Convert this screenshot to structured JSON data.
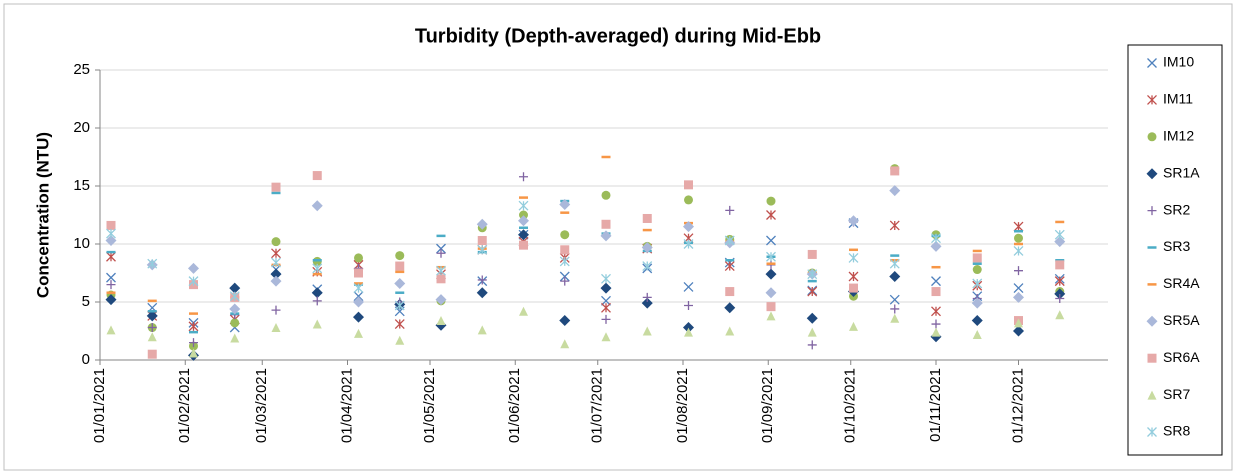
{
  "chart_data": {
    "type": "scatter",
    "title": "Turbidity (Depth-averaged) during Mid-Ebb",
    "y_label": "Concentration (NTU)",
    "x": [
      "2021-01-05",
      "2021-01-20",
      "2021-02-04",
      "2021-02-19",
      "2021-03-06",
      "2021-03-21",
      "2021-04-05",
      "2021-04-20",
      "2021-05-05",
      "2021-05-20",
      "2021-06-04",
      "2021-06-19",
      "2021-07-04",
      "2021-07-19",
      "2021-08-03",
      "2021-08-18",
      "2021-09-02",
      "2021-09-17",
      "2021-10-02",
      "2021-10-17",
      "2021-11-01",
      "2021-11-16",
      "2021-12-01",
      "2021-12-16"
    ],
    "xlim": [
      "2021-01-01",
      "2021-12-31"
    ],
    "xticks": [
      {
        "value": "2021-01-01",
        "label": "01/01/2021"
      },
      {
        "value": "2021-02-01",
        "label": "01/02/2021"
      },
      {
        "value": "2021-03-01",
        "label": "01/03/2021"
      },
      {
        "value": "2021-04-01",
        "label": "01/04/2021"
      },
      {
        "value": "2021-05-01",
        "label": "01/05/2021"
      },
      {
        "value": "2021-06-01",
        "label": "01/06/2021"
      },
      {
        "value": "2021-07-01",
        "label": "01/07/2021"
      },
      {
        "value": "2021-08-01",
        "label": "01/08/2021"
      },
      {
        "value": "2021-09-01",
        "label": "01/09/2021"
      },
      {
        "value": "2021-10-01",
        "label": "01/10/2021"
      },
      {
        "value": "2021-11-01",
        "label": "01/11/2021"
      },
      {
        "value": "2021-12-01",
        "label": "01/12/2021"
      }
    ],
    "ylim": [
      0,
      25
    ],
    "yticks": [
      0,
      5,
      10,
      15,
      20,
      25
    ],
    "grid": true,
    "legend": "right",
    "series": [
      {
        "name": "IM10",
        "color": "#4f81bd",
        "marker": "x",
        "values": [
          7.1,
          4.5,
          3.2,
          2.8,
          7.8,
          6.1,
          5.5,
          4.2,
          9.6,
          6.8,
          10.8,
          7.2,
          5.1,
          7.9,
          6.3,
          8.4,
          10.3,
          6.0,
          11.8,
          5.2,
          6.8,
          5.5,
          6.2,
          7.0
        ]
      },
      {
        "name": "IM11",
        "color": "#c0504d",
        "marker": "star",
        "values": [
          8.9,
          3.8,
          2.9,
          3.5,
          9.2,
          7.6,
          8.2,
          3.1,
          7.4,
          9.5,
          10.2,
          8.8,
          4.5,
          9.6,
          10.5,
          8.1,
          12.5,
          5.9,
          7.2,
          11.6,
          4.2,
          6.4,
          11.5,
          6.8
        ]
      },
      {
        "name": "IM12",
        "color": "#9bbb59",
        "marker": "circle",
        "values": [
          5.6,
          2.8,
          1.2,
          3.2,
          10.2,
          8.5,
          8.8,
          9.0,
          5.1,
          11.4,
          12.5,
          10.8,
          14.2,
          9.8,
          13.8,
          10.4,
          13.7,
          7.5,
          5.5,
          16.5,
          10.8,
          7.8,
          10.5,
          5.9
        ]
      },
      {
        "name": "SR1A",
        "color": "#1f497d",
        "marker": "diamond",
        "values": [
          5.2,
          3.8,
          0.4,
          6.2,
          7.4,
          5.8,
          3.7,
          4.8,
          3.0,
          5.8,
          10.8,
          3.4,
          6.2,
          4.9,
          2.8,
          4.5,
          7.4,
          3.6,
          5.9,
          7.2,
          2.0,
          3.4,
          2.5,
          5.7
        ]
      },
      {
        "name": "SR2",
        "color": "#8064a2",
        "marker": "plus",
        "values": [
          6.5,
          2.8,
          1.5,
          3.9,
          4.3,
          5.1,
          7.9,
          5.0,
          9.2,
          6.9,
          15.8,
          6.8,
          3.5,
          5.4,
          4.7,
          12.9,
          8.2,
          1.3,
          11.9,
          4.4,
          3.1,
          5.3,
          7.7,
          5.3
        ]
      },
      {
        "name": "SR3",
        "color": "#4bacc6",
        "marker": "dash",
        "values": [
          9.3,
          4.2,
          2.4,
          4.0,
          14.4,
          8.6,
          6.5,
          5.8,
          10.7,
          9.3,
          11.4,
          13.7,
          10.9,
          9.4,
          10.1,
          8.6,
          8.9,
          6.8,
          12.0,
          9.0,
          10.7,
          8.3,
          11.1,
          8.6
        ]
      },
      {
        "name": "SR4A",
        "color": "#f79646",
        "marker": "dash",
        "values": [
          5.8,
          5.1,
          4.0,
          5.4,
          8.2,
          7.4,
          6.6,
          7.6,
          8.0,
          9.6,
          14.0,
          12.7,
          17.5,
          11.2,
          11.8,
          10.2,
          8.3,
          7.5,
          9.5,
          8.6,
          8.0,
          9.4,
          10.0,
          11.9
        ]
      },
      {
        "name": "SR5A",
        "color": "#aab8da",
        "marker": "diamond",
        "values": [
          10.3,
          8.2,
          7.9,
          4.4,
          6.8,
          13.3,
          5.0,
          6.6,
          5.2,
          11.7,
          12.0,
          13.4,
          10.7,
          9.7,
          11.5,
          10.1,
          5.8,
          7.4,
          12.0,
          14.6,
          9.8,
          4.9,
          5.4,
          10.2
        ]
      },
      {
        "name": "SR6A",
        "color": "#e6a9a8",
        "marker": "square",
        "values": [
          11.6,
          0.5,
          6.5,
          5.4,
          14.9,
          15.9,
          7.5,
          8.1,
          7.0,
          10.3,
          9.9,
          9.5,
          11.7,
          12.2,
          15.1,
          5.9,
          4.6,
          9.1,
          6.2,
          16.3,
          5.9,
          8.8,
          3.4,
          8.2
        ]
      },
      {
        "name": "SR7",
        "color": "#c8dba0",
        "marker": "triangle",
        "values": [
          2.6,
          2.0,
          0.6,
          1.9,
          2.8,
          3.1,
          2.3,
          1.7,
          3.4,
          2.6,
          4.2,
          1.4,
          2.0,
          2.5,
          2.4,
          2.5,
          3.8,
          2.4,
          2.9,
          3.6,
          2.4,
          2.2,
          3.2,
          3.9
        ]
      },
      {
        "name": "SR8",
        "color": "#93cddd",
        "marker": "star",
        "values": [
          10.9,
          8.3,
          6.8,
          5.5,
          8.4,
          7.9,
          6.2,
          4.7,
          7.7,
          9.5,
          13.3,
          8.5,
          7.0,
          8.1,
          10.0,
          10.3,
          8.9,
          7.4,
          8.8,
          8.3,
          10.5,
          6.6,
          9.4,
          10.8
        ]
      }
    ]
  }
}
